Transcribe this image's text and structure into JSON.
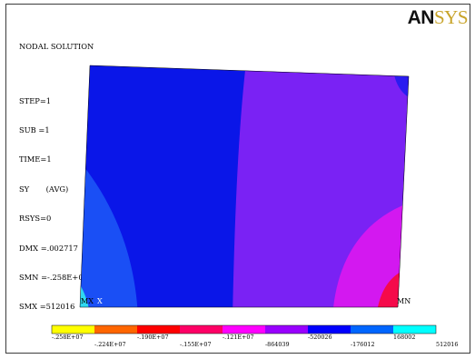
{
  "info": {
    "title": "NODAL SOLUTION",
    "lines": [
      "STEP=1",
      "SUB =1",
      "TIME=1",
      "SY       (AVG)",
      "RSYS=0",
      "DMX =.002717",
      "SMN =-.258E+07",
      "SMX =512016"
    ]
  },
  "logo": {
    "part1": "AN",
    "part2": "SYS"
  },
  "plot": {
    "node_labels": {
      "min_marker": "MX",
      "axis": "X",
      "max_marker": "MN"
    }
  },
  "legend": {
    "colors": [
      "#ffff00",
      "#ff6600",
      "#ff0000",
      "#ff0066",
      "#ff00ff",
      "#9900ff",
      "#0000ff",
      "#0066ff",
      "#00ffff"
    ],
    "labels": [
      "-.258E+07",
      "-.224E+07",
      "-.190E+07",
      "-.155E+07",
      "-.121E+07",
      "-864039",
      "-520026",
      "-176012",
      "168002",
      "512016"
    ]
  },
  "colors": {
    "deep_blue": "#0a16e8",
    "mid_blue": "#1a4ff5",
    "violet": "#7a22f4",
    "magenta": "#d318f0",
    "red": "#f50a4a",
    "cyan": "#2fd8f0"
  }
}
